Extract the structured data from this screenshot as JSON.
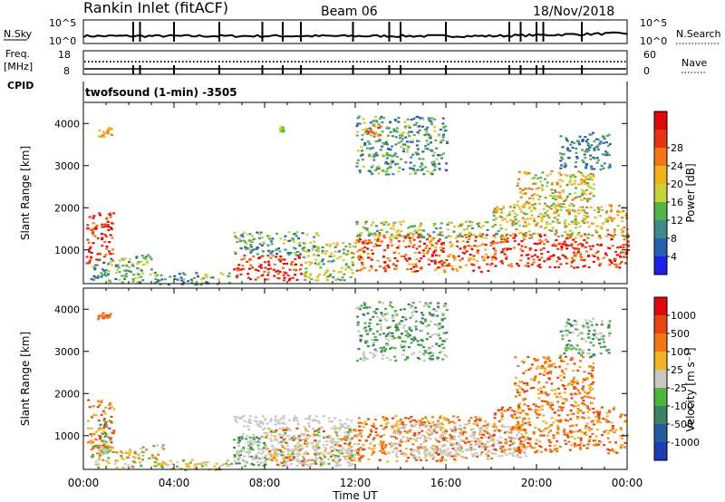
{
  "header": {
    "station": "Rankin Inlet (fitACF)",
    "beam": "Beam 06",
    "date": "18/Nov/2018",
    "mode": "twofsound (1-min) -3505"
  },
  "top_panels": {
    "nsky": {
      "label": "N.Sky",
      "ticks": [
        "10^5",
        "10^0"
      ]
    },
    "nsearch": {
      "label": "N.Search",
      "ticks": [
        "10^5",
        "10^0"
      ]
    },
    "freq": {
      "label_line1": "Freq.",
      "label_line2": "[MHz]",
      "ticks": [
        "18",
        "8"
      ]
    },
    "nave": {
      "label": "Nave",
      "ticks": [
        "60",
        "0"
      ]
    },
    "cpid": {
      "label": "CPID"
    },
    "spike_hours": [
      2.2,
      2.5,
      4.0,
      6.0,
      7.9,
      8.8,
      9.6,
      11.9,
      13.5,
      14.0,
      16.0,
      18.8,
      19.3,
      20.0,
      20.3,
      22.0
    ]
  },
  "chart_data": [
    {
      "type": "heatmap",
      "title": "Power",
      "ylabel": "Slant Range [km]",
      "xlabel": "Time UT",
      "x_ticks": [
        "00:00",
        "04:00",
        "08:00",
        "12:00",
        "16:00",
        "20:00",
        "00:00"
      ],
      "y_ticks": [
        "1000",
        "2000",
        "3000",
        "4000"
      ],
      "ylim": [
        200,
        4500
      ],
      "colorbar": {
        "label": "Power [dB]",
        "ticks": [
          "4",
          "8",
          "12",
          "16",
          "20",
          "24",
          "28"
        ],
        "colors": [
          "#1f1fe6",
          "#2a5fb0",
          "#3c8c8c",
          "#56b24a",
          "#c8d23c",
          "#f2b21e",
          "#f07814",
          "#e63214",
          "#dc0a0a"
        ]
      },
      "echo_regions": [
        {
          "t": [
            0.1,
            1.3
          ],
          "r": [
            700,
            1900
          ],
          "c": [
            6,
            8
          ]
        },
        {
          "t": [
            0.6,
            1.2
          ],
          "r": [
            3700,
            3950
          ],
          "c": [
            5,
            6
          ]
        },
        {
          "t": [
            0.3,
            3.0
          ],
          "r": [
            250,
            900
          ],
          "c": [
            1,
            4
          ]
        },
        {
          "t": [
            3.0,
            6.5
          ],
          "r": [
            200,
            500
          ],
          "c": [
            1,
            4
          ]
        },
        {
          "t": [
            6.6,
            9.6
          ],
          "r": [
            300,
            900
          ],
          "c": [
            6,
            8
          ]
        },
        {
          "t": [
            6.6,
            10.4
          ],
          "r": [
            900,
            1450
          ],
          "c": [
            1,
            4
          ]
        },
        {
          "t": [
            8.6,
            8.8
          ],
          "r": [
            3800,
            3950
          ],
          "c": [
            3,
            4
          ]
        },
        {
          "t": [
            9.6,
            12.0
          ],
          "r": [
            300,
            1200
          ],
          "c": [
            2,
            5
          ]
        },
        {
          "t": [
            12.0,
            18.0
          ],
          "r": [
            500,
            1400
          ],
          "c": [
            5,
            8
          ]
        },
        {
          "t": [
            12.0,
            18.0
          ],
          "r": [
            1300,
            1700
          ],
          "c": [
            2,
            5
          ]
        },
        {
          "t": [
            18.0,
            24.0
          ],
          "r": [
            600,
            1400
          ],
          "c": [
            6,
            8
          ]
        },
        {
          "t": [
            18.0,
            24.0
          ],
          "r": [
            1300,
            2100
          ],
          "c": [
            3,
            6
          ]
        },
        {
          "t": [
            19.0,
            22.5
          ],
          "r": [
            2000,
            2900
          ],
          "c": [
            3,
            6
          ]
        },
        {
          "t": [
            12.0,
            16.0
          ],
          "r": [
            2800,
            4200
          ],
          "c": [
            1,
            4
          ]
        },
        {
          "t": [
            12.4,
            13.1
          ],
          "r": [
            3700,
            4000
          ],
          "c": [
            5,
            7
          ]
        },
        {
          "t": [
            21.0,
            23.2
          ],
          "r": [
            2900,
            3800
          ],
          "c": [
            1,
            3
          ]
        }
      ]
    },
    {
      "type": "heatmap",
      "title": "Velocity",
      "ylabel": "Slant Range [km]",
      "xlabel": "Time UT",
      "x_ticks": [
        "00:00",
        "04:00",
        "08:00",
        "12:00",
        "16:00",
        "20:00",
        "00:00"
      ],
      "y_ticks": [
        "1000",
        "2000",
        "3000",
        "4000"
      ],
      "ylim": [
        200,
        4500
      ],
      "colorbar": {
        "label": "Velocity [m s⁻¹]",
        "ticks": [
          "1000",
          "500",
          "100",
          "25",
          "-25",
          "-100",
          "-500",
          "-1000"
        ],
        "colors": [
          "#1e3cb4",
          "#285aa0",
          "#3c8264",
          "#50b43c",
          "#c8c8c0",
          "#f0b428",
          "#f07814",
          "#e64614",
          "#dc0a0a"
        ]
      },
      "echo_regions": [
        {
          "t": [
            0.1,
            1.3
          ],
          "r": [
            700,
            1900
          ],
          "c": [
            5,
            7
          ]
        },
        {
          "t": [
            0.7,
            1.2
          ],
          "r": [
            600,
            1400
          ],
          "c": [
            2,
            3
          ]
        },
        {
          "t": [
            0.6,
            1.2
          ],
          "r": [
            3700,
            3950
          ],
          "c": [
            6,
            7
          ]
        },
        {
          "t": [
            0.3,
            3.5
          ],
          "r": [
            250,
            800
          ],
          "c": [
            3,
            6
          ]
        },
        {
          "t": [
            3.0,
            6.5
          ],
          "r": [
            200,
            450
          ],
          "c": [
            3,
            5
          ]
        },
        {
          "t": [
            6.6,
            8.0
          ],
          "r": [
            300,
            1000
          ],
          "c": [
            2,
            3
          ]
        },
        {
          "t": [
            6.6,
            12.0
          ],
          "r": [
            300,
            1500
          ],
          "c": [
            4,
            4
          ]
        },
        {
          "t": [
            8.0,
            12.0
          ],
          "r": [
            300,
            1200
          ],
          "c": [
            3,
            7
          ]
        },
        {
          "t": [
            12.0,
            18.0
          ],
          "r": [
            400,
            1500
          ],
          "c": [
            5,
            7
          ]
        },
        {
          "t": [
            13.5,
            19.5
          ],
          "r": [
            500,
            1300
          ],
          "c": [
            4,
            4
          ]
        },
        {
          "t": [
            18.0,
            24.0
          ],
          "r": [
            600,
            1700
          ],
          "c": [
            5,
            7
          ]
        },
        {
          "t": [
            19.0,
            22.5
          ],
          "r": [
            1700,
            2900
          ],
          "c": [
            5,
            7
          ]
        },
        {
          "t": [
            12.0,
            16.0
          ],
          "r": [
            2800,
            4200
          ],
          "c": [
            2,
            4
          ]
        },
        {
          "t": [
            21.0,
            23.2
          ],
          "r": [
            2900,
            3800
          ],
          "c": [
            2,
            4
          ]
        }
      ]
    }
  ]
}
